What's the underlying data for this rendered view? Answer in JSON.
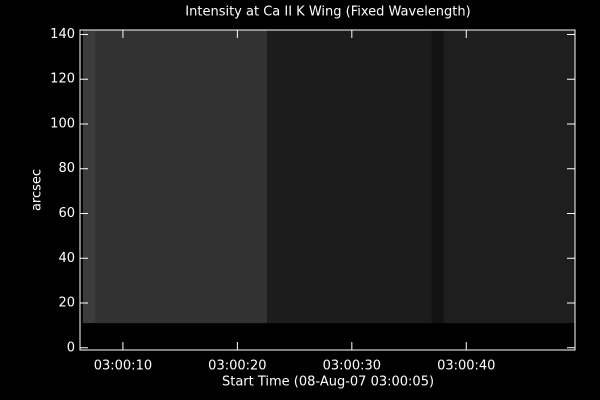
{
  "chart_data": {
    "type": "image",
    "title": "Intensity at Ca II K Wing (Fixed Wavelength)",
    "xlabel": "Start Time (08-Aug-07 03:00:05)",
    "ylabel": "arcsec",
    "xlim": [
      1.25,
      44.5
    ],
    "ylim": [
      -1,
      142
    ],
    "xticks": [
      {
        "value": 5,
        "label": "03:00:10"
      },
      {
        "value": 15,
        "label": "03:00:20"
      },
      {
        "value": 25,
        "label": "03:00:30"
      },
      {
        "value": 35,
        "label": "03:00:40"
      }
    ],
    "yticks": [
      0,
      20,
      40,
      60,
      80,
      100,
      120,
      140
    ],
    "image_yrange": [
      11,
      142
    ],
    "blocks": [
      {
        "x0": 1.5,
        "x1": 2.6,
        "level": 60
      },
      {
        "x0": 2.6,
        "x1": 17.6,
        "level": 50
      },
      {
        "x0": 17.6,
        "x1": 32,
        "level": 28
      },
      {
        "x0": 32,
        "x1": 33,
        "level": 18
      },
      {
        "x0": 33,
        "x1": 44.5,
        "level": 30
      }
    ],
    "axis_color": "#ffffff",
    "background": "#000000"
  }
}
